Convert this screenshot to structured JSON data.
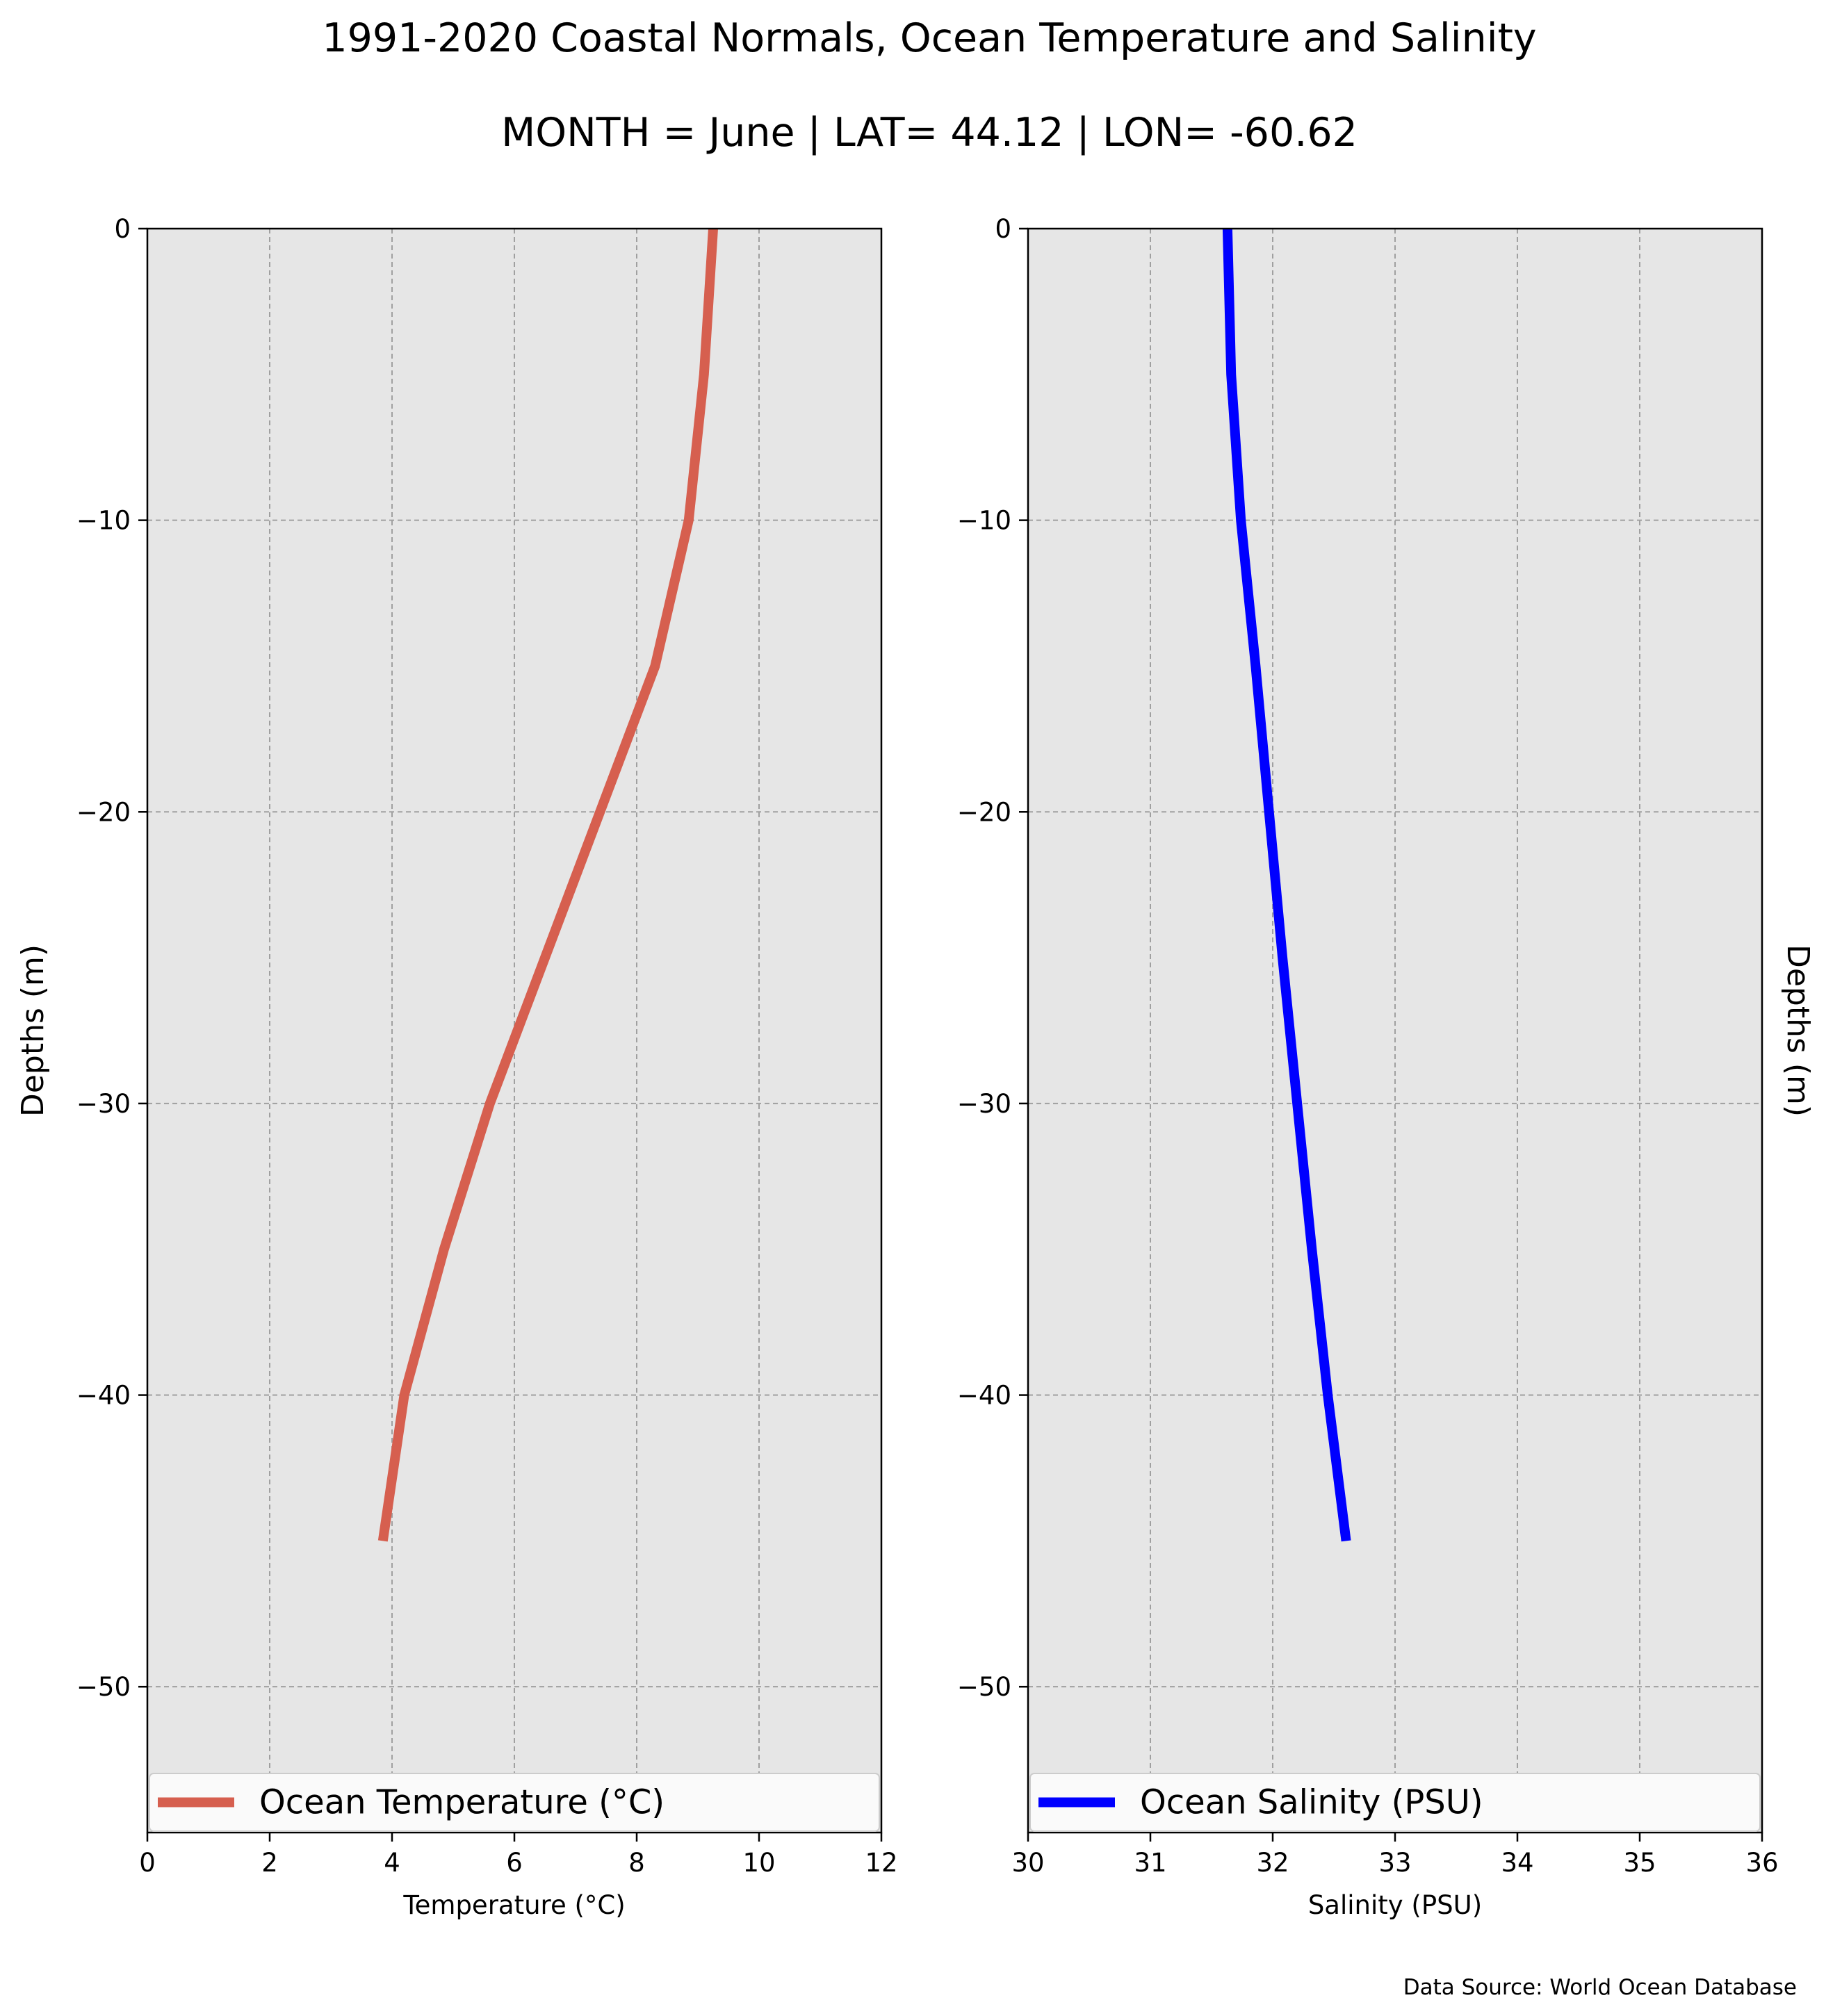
{
  "header": {
    "title": "1991-2020 Coastal Normals, Ocean Temperature and Salinity",
    "subtitle": "MONTH = June | LAT= 44.12 | LON= -60.62"
  },
  "footer": {
    "source": "Data Source: World Ocean Database"
  },
  "chart_data": [
    {
      "type": "line",
      "panel": "left",
      "xlabel": "Temperature (°C)",
      "ylabel": "Depths (m)",
      "ylabel_side": "left",
      "xlim": [
        0,
        12
      ],
      "ylim": [
        -55,
        0
      ],
      "xticks": [
        0,
        2,
        4,
        6,
        8,
        10,
        12
      ],
      "yticks": [
        0,
        -10,
        -20,
        -30,
        -40,
        -50
      ],
      "grid": true,
      "background": "#e6e6e6",
      "legend_position": "bottom",
      "series": [
        {
          "name": "Ocean Temperature (°C)",
          "color": "#d65f4f",
          "points": [
            {
              "x": 9.25,
              "y": 0
            },
            {
              "x": 9.1,
              "y": -5
            },
            {
              "x": 8.85,
              "y": -10
            },
            {
              "x": 8.3,
              "y": -15
            },
            {
              "x": 7.4,
              "y": -20
            },
            {
              "x": 6.5,
              "y": -25
            },
            {
              "x": 5.6,
              "y": -30
            },
            {
              "x": 4.85,
              "y": -35
            },
            {
              "x": 4.2,
              "y": -40
            },
            {
              "x": 3.85,
              "y": -45
            }
          ]
        }
      ]
    },
    {
      "type": "line",
      "panel": "right",
      "xlabel": "Salinity (PSU)",
      "ylabel": "Depths (m)",
      "ylabel_side": "right",
      "xlim": [
        30,
        36
      ],
      "ylim": [
        -55,
        0
      ],
      "xticks": [
        30,
        31,
        32,
        33,
        34,
        35,
        36
      ],
      "yticks": [
        0,
        -10,
        -20,
        -30,
        -40,
        -50
      ],
      "grid": true,
      "background": "#e6e6e6",
      "legend_position": "bottom",
      "series": [
        {
          "name": "Ocean Salinity (PSU)",
          "color": "#0000ff",
          "points": [
            {
              "x": 31.63,
              "y": 0
            },
            {
              "x": 31.66,
              "y": -5
            },
            {
              "x": 31.74,
              "y": -10
            },
            {
              "x": 31.86,
              "y": -15
            },
            {
              "x": 31.97,
              "y": -20
            },
            {
              "x": 32.08,
              "y": -25
            },
            {
              "x": 32.2,
              "y": -30
            },
            {
              "x": 32.32,
              "y": -35
            },
            {
              "x": 32.45,
              "y": -40
            },
            {
              "x": 32.6,
              "y": -45
            }
          ]
        }
      ]
    }
  ]
}
